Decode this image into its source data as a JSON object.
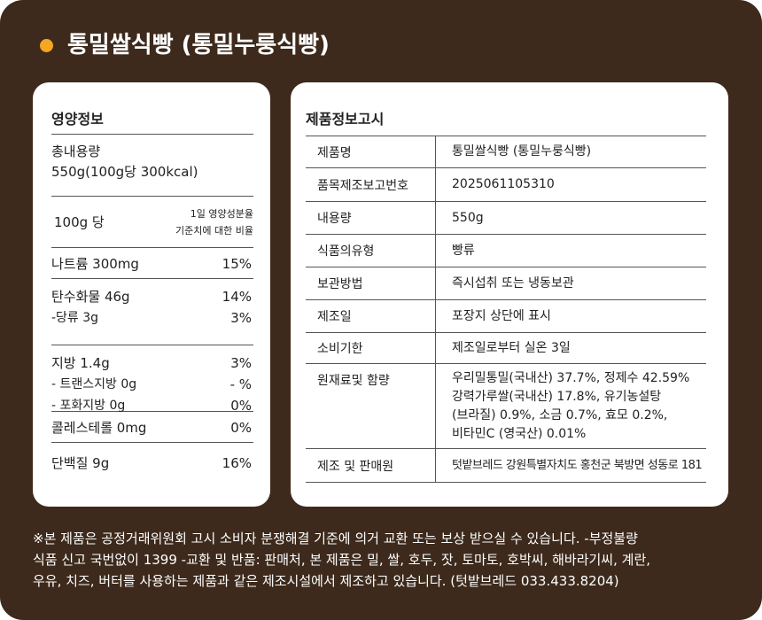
{
  "title": "통밀쌀식빵 (통밀누룽식빵)",
  "nutrition": {
    "heading": "영양정보",
    "total_label": "총내용량",
    "total_value": "550g(100g당 300kcal)",
    "per": "100g 당",
    "daily_note": [
      "1일 영양성분율",
      "기준치에 대한 비율"
    ],
    "groups": [
      [
        [
          "나트륨 300mg",
          "15%"
        ]
      ],
      [
        [
          "탄수화물 46g",
          "14%"
        ],
        [
          "-당류  3g",
          "3%"
        ]
      ],
      [
        [
          "지방 1.4g",
          "3%"
        ],
        [
          "- 트랜스지방 0g",
          "- %"
        ],
        [
          "- 포화지방 0g",
          "0%"
        ]
      ],
      [
        [
          "콜레스테롤 0mg",
          "0%"
        ]
      ],
      [
        [
          "단백질 9g",
          "16%"
        ]
      ]
    ]
  },
  "product_info": {
    "heading": "제품정보고시",
    "rows": [
      [
        "제품명",
        [
          "통밀쌀식빵 (통밀누룽식빵)"
        ]
      ],
      [
        "품목제조보고번호",
        [
          "2025061105310"
        ]
      ],
      [
        "내용량",
        [
          "550g"
        ]
      ],
      [
        "식품의유형",
        [
          "빵류"
        ]
      ],
      [
        "보관방법",
        [
          "즉시섭취 또는 냉동보관"
        ]
      ],
      [
        "제조일",
        [
          "포장지 상단에 표시"
        ]
      ],
      [
        "소비기한",
        [
          "제조일로부터 실온 3일"
        ]
      ],
      [
        "원재료및 함량",
        [
          "우리밀통밀(국내산) 37.7%, 정제수 42.59%",
          "강력가루쌀(국내산) 17.8%, 유기농설탕",
          "(브라질) 0.9%, 소금 0.7%, 효모 0.2%,",
          "비타민C (영국산) 0.01%"
        ]
      ],
      [
        "제조 및 판매원",
        [
          "텃밭브레드  강원특별자치도 홍천군 북방면 성동로 181"
        ]
      ]
    ]
  },
  "footer": [
    "※본 제품은 공정거래위원회 고시 소비자 분쟁해결 기준에 의거 교환 또는 보상 받으실 수 있습니다. -부정불량",
    "식품 신고 국번없이 1399 -교환 및 반품: 판매처, 본 제품은 밀, 쌀, 호두, 잣, 토마토, 호박씨, 해바라기씨, 계란,",
    "우유, 치즈, 버터를 사용하는 제품과 같은 제조시설에서 제조하고 있습니다. (텃밭브레드 033.433.8204)"
  ]
}
